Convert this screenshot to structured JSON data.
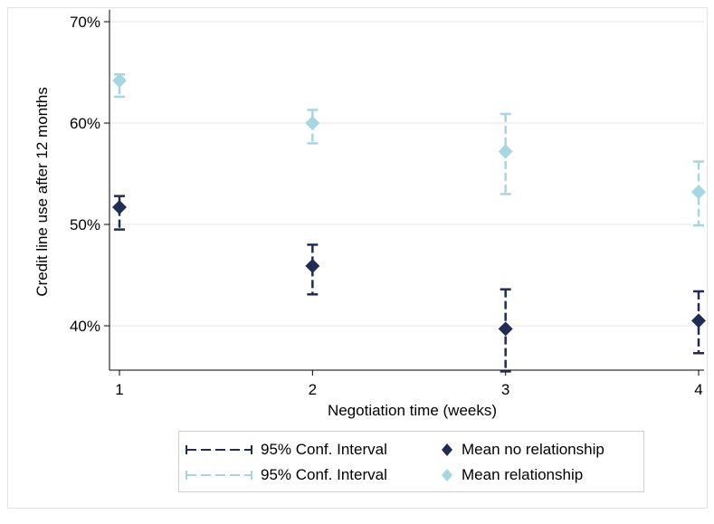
{
  "chart_data": {
    "type": "scatter",
    "xlabel": "Negotiation time (weeks)",
    "ylabel": "Credit line use after 12 months",
    "x_ticks": [
      "1",
      "2",
      "3",
      "4"
    ],
    "y_ticks": [
      "40%",
      "50%",
      "60%",
      "70%"
    ],
    "xlim": [
      1,
      4
    ],
    "ylim": [
      35.5,
      71
    ],
    "grid": "horizontal",
    "legend_position": "bottom",
    "series": [
      {
        "name": "Mean no relationship",
        "ci_name": "95% Conf. Interval",
        "color": "#1f2d52",
        "marker": "diamond",
        "x": [
          1,
          2,
          3,
          4
        ],
        "y": [
          51.7,
          45.9,
          39.7,
          40.5
        ],
        "ci_low": [
          49.5,
          43.1,
          35.5,
          37.3
        ],
        "ci_high": [
          52.8,
          48.0,
          43.6,
          43.4
        ]
      },
      {
        "name": "Mean relationship",
        "ci_name": "95% Conf. Interval",
        "color": "#a6d6e1",
        "marker": "diamond",
        "x": [
          1,
          2,
          3,
          4
        ],
        "y": [
          64.2,
          60.0,
          57.2,
          53.2
        ],
        "ci_low": [
          62.6,
          58.0,
          53.0,
          49.9
        ],
        "ci_high": [
          64.8,
          61.3,
          60.9,
          56.2
        ]
      }
    ]
  }
}
